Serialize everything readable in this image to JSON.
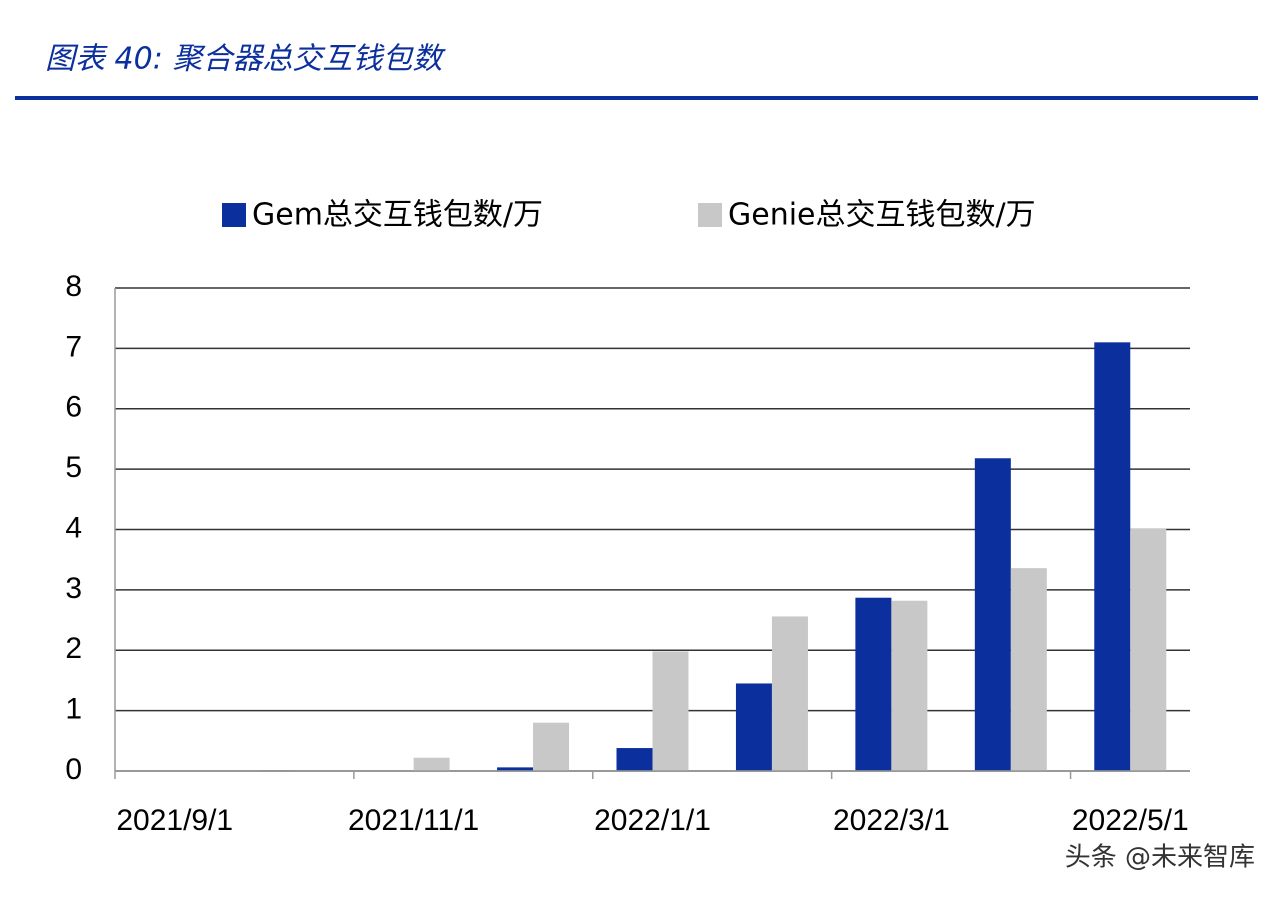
{
  "chart_data": {
    "type": "bar",
    "title": "图表 40: 聚合器总交互钱包数",
    "source": "头条 @未来智库",
    "categories": [
      "2021/9/1",
      null,
      "2021/11/1",
      null,
      "2022/1/1",
      null,
      "2022/3/1",
      null,
      "2022/5/1"
    ],
    "series": [
      {
        "name": "Gem总交互钱包数/万",
        "color": "#0b2f9c",
        "values": [
          0,
          0.01,
          0,
          0.06,
          0.38,
          1.45,
          2.87,
          5.18,
          7.1
        ]
      },
      {
        "name": "Genie总交互钱包数/万",
        "color": "#c8c8c8",
        "values": [
          0,
          0,
          0.22,
          0.8,
          1.98,
          2.56,
          2.82,
          3.36,
          4.02
        ]
      }
    ],
    "ylim": [
      0,
      8
    ],
    "yticks": [
      0,
      1,
      2,
      3,
      4,
      5,
      6,
      7,
      8
    ],
    "grid": true,
    "legend": "top"
  }
}
